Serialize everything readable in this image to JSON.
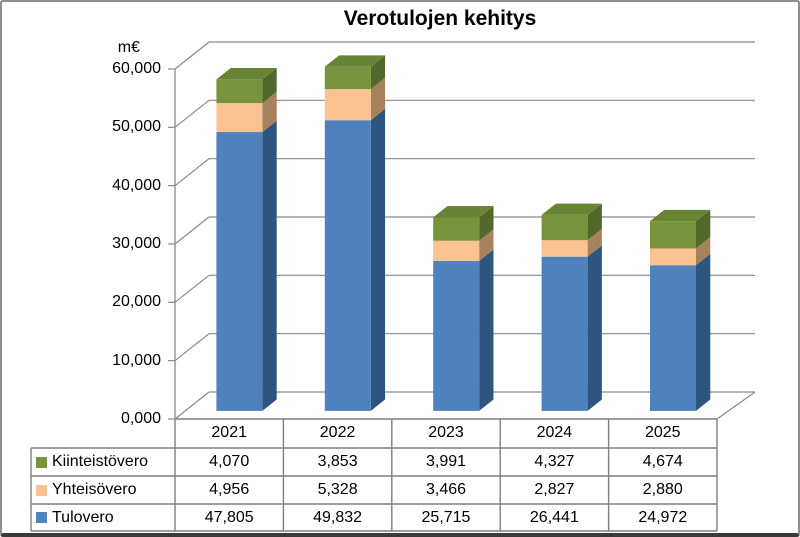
{
  "title": "Verotulojen kehitys",
  "axis_unit_label": "m€",
  "colors": {
    "gridline": "#8A8A8A",
    "table_border": "#7F7F7F",
    "frame": "#8F8F8F",
    "frame_bottom": "#3A3A3A",
    "text": "#000000"
  },
  "chart_data": {
    "type": "bar",
    "stacked": true,
    "effect": "3d",
    "title": "Verotulojen kehitys",
    "ylabel": "m€",
    "categories": [
      "2021",
      "2022",
      "2023",
      "2024",
      "2025"
    ],
    "series": [
      {
        "name": "Tulovero",
        "color": "#4F81BD",
        "side_color": "#2E5580",
        "top_color": "#6B94C9",
        "values": [
          47805,
          49832,
          25715,
          26441,
          24972
        ],
        "labels": [
          "47,805",
          "49,832",
          "25,715",
          "26,441",
          "24,972"
        ]
      },
      {
        "name": "Yhteisövero",
        "color": "#FAC291",
        "side_color": "#A6815A",
        "top_color": "#E8B183",
        "values": [
          4956,
          5328,
          3466,
          2827,
          2880
        ],
        "labels": [
          "4,956",
          "5,328",
          "3,466",
          "2,827",
          "2,880"
        ]
      },
      {
        "name": "Kiinteistövero",
        "color": "#77933C",
        "side_color": "#52682B",
        "top_color": "#688536",
        "values": [
          4070,
          3853,
          3991,
          4327,
          4674
        ],
        "labels": [
          "4,070",
          "3,853",
          "3,991",
          "4,327",
          "4,674"
        ]
      }
    ],
    "ylim": [
      0,
      60000
    ],
    "ytick_step": 10000,
    "ytick_labels": [
      "60,000",
      "50,000",
      "40,000",
      "30,000",
      "20,000",
      "10,000",
      "0,000"
    ],
    "grid": true,
    "legend_position": "data-table-left"
  }
}
